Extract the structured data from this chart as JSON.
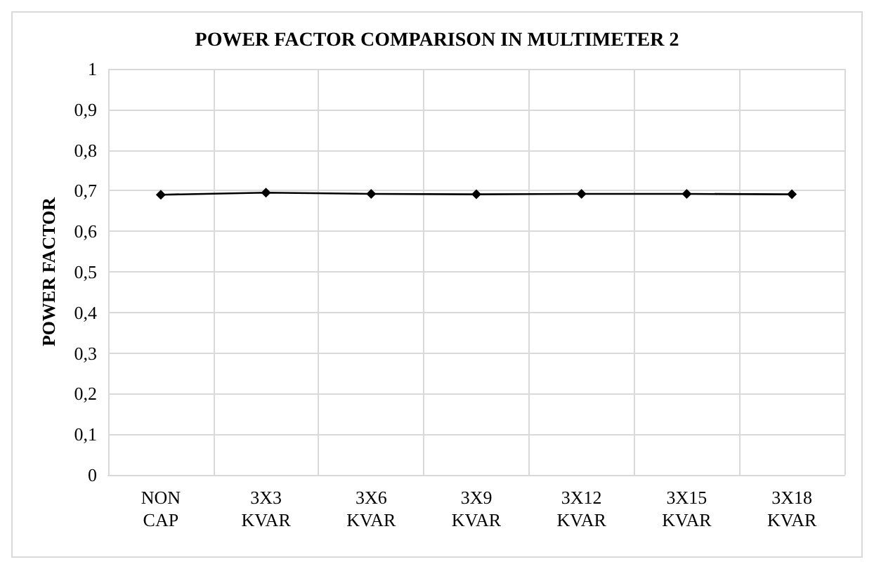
{
  "chart_data": {
    "type": "line",
    "title": "POWER FACTOR COMPARISON IN MULTIMETER 2",
    "ylabel": "POWER FACTOR",
    "categories": [
      "NON\nCAP",
      "3X3\nKVAR",
      "3X6\nKVAR",
      "3X9\nKVAR",
      "3X12\nKVAR",
      "3X15\nKVAR",
      "3X18\nKVAR"
    ],
    "series": [
      {
        "color": "#000000",
        "values": [
          0.69,
          0.695,
          0.692,
          0.691,
          0.692,
          0.692,
          0.691
        ]
      }
    ],
    "ylim": [
      0,
      1
    ],
    "yticks": [
      0,
      {
        "value": 0.1,
        "label": "0,1"
      },
      {
        "value": 0.2,
        "label": "0,2"
      },
      {
        "value": 0.3,
        "label": "0,3"
      },
      {
        "value": 0.4,
        "label": "0,4"
      },
      {
        "value": 0.5,
        "label": "0,5"
      },
      {
        "value": 0.6,
        "label": "0,6"
      },
      {
        "value": 0.7,
        "label": "0,7"
      },
      {
        "value": 0.8,
        "label": "0,8"
      },
      {
        "value": 0.9,
        "label": "0,9"
      },
      1
    ],
    "grid": true,
    "marker": "diamond",
    "line_style": "solid"
  }
}
